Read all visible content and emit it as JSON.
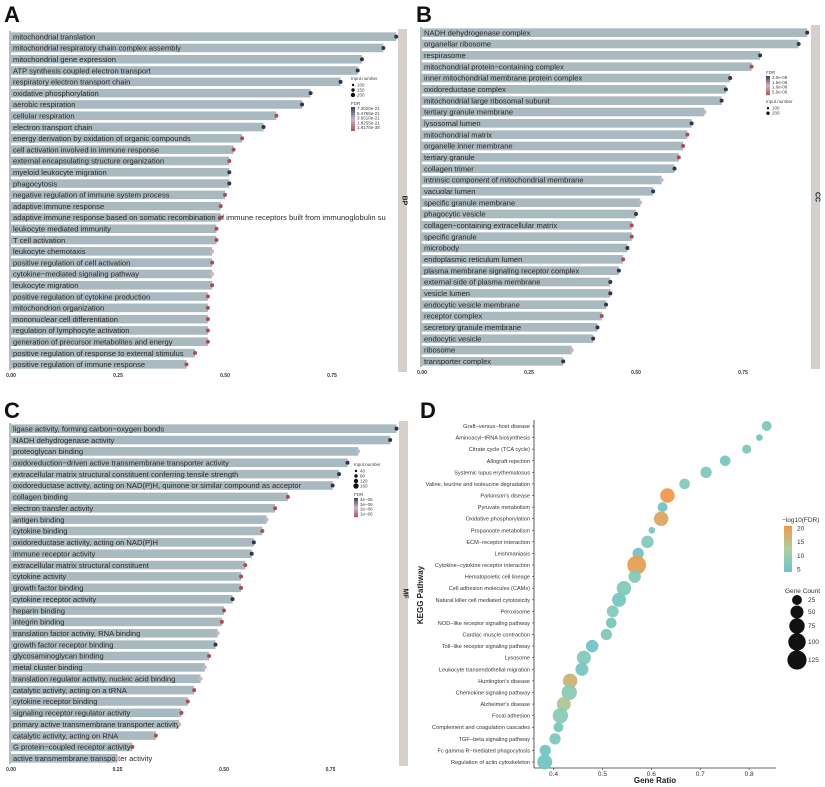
{
  "dot_palette": {
    "d": "#34344a",
    "r": "#b04a55",
    "l": "#cdb7be"
  },
  "bar_color": "#a9b9c0",
  "panels": [
    {
      "letter": "A",
      "strip": "BP",
      "xlim": [
        0,
        0.92
      ],
      "ticks": [
        "0.00",
        "0.25",
        "0.50",
        "0.75"
      ],
      "legend": {
        "size_title": "Input.number",
        "size_labels": [
          "100",
          "150",
          "200"
        ],
        "fdr_title": "FDR",
        "fdr_labels": [
          "7.3020e-21",
          "5.4765e-21",
          "3.6510e-21",
          "1.8255e-21",
          "1.9170e-38"
        ]
      },
      "terms": [
        {
          "label": "mitochondrial translation",
          "value": 0.9,
          "dot": "d"
        },
        {
          "label": "mitochondrial respiratory chain complex assembly",
          "value": 0.87,
          "dot": "d"
        },
        {
          "label": "mitochondrial gene expression",
          "value": 0.82,
          "dot": "d"
        },
        {
          "label": "ATP synthesis coupled electron transport",
          "value": 0.81,
          "dot": "d"
        },
        {
          "label": "respiratory electron transport chain",
          "value": 0.77,
          "dot": "d"
        },
        {
          "label": "oxidative phosphorylation",
          "value": 0.7,
          "dot": "d"
        },
        {
          "label": "aerobic respiration",
          "value": 0.68,
          "dot": "d"
        },
        {
          "label": "cellular respiration",
          "value": 0.62,
          "dot": "r"
        },
        {
          "label": "electron transport chain",
          "value": 0.59,
          "dot": "d"
        },
        {
          "label": "energy derivation by oxidation of organic compounds",
          "value": 0.54,
          "dot": "r"
        },
        {
          "label": "cell activation involved in immune response",
          "value": 0.52,
          "dot": "r"
        },
        {
          "label": "external encapsulating structure organization",
          "value": 0.51,
          "dot": "r"
        },
        {
          "label": "myeloid leukocyte migration",
          "value": 0.51,
          "dot": "d"
        },
        {
          "label": "phagocytosis",
          "value": 0.51,
          "dot": "d"
        },
        {
          "label": "negative regulation of immune system process",
          "value": 0.5,
          "dot": "r"
        },
        {
          "label": "adaptive immune response",
          "value": 0.49,
          "dot": "r"
        },
        {
          "label": "adaptive immune response based on somatic recombination of immune receptors built from immunoglobulin su",
          "value": 0.49,
          "dot": "r"
        },
        {
          "label": "leukocyte mediated immunity",
          "value": 0.48,
          "dot": "r"
        },
        {
          "label": "T cell activation",
          "value": 0.48,
          "dot": "r"
        },
        {
          "label": "leukocyte chemotaxis",
          "value": 0.47,
          "dot": "l"
        },
        {
          "label": "positive regulation of cell activation",
          "value": 0.47,
          "dot": "r"
        },
        {
          "label": "cytokine−mediated signaling pathway",
          "value": 0.47,
          "dot": "l"
        },
        {
          "label": "leukocyte migration",
          "value": 0.47,
          "dot": "r"
        },
        {
          "label": "positive regulation of cytokine production",
          "value": 0.46,
          "dot": "r"
        },
        {
          "label": "mitochondrion organization",
          "value": 0.46,
          "dot": "r"
        },
        {
          "label": "mononuclear cell differentiation",
          "value": 0.46,
          "dot": "r"
        },
        {
          "label": "regulation of lymphocyte activation",
          "value": 0.46,
          "dot": "r"
        },
        {
          "label": "generation of precursor metabolites and energy",
          "value": 0.46,
          "dot": "r"
        },
        {
          "label": "positive regulation of response to external stimulus",
          "value": 0.43,
          "dot": "r"
        },
        {
          "label": "positive regulation of immune response",
          "value": 0.41,
          "dot": "r"
        }
      ]
    },
    {
      "letter": "B",
      "strip": "CC",
      "xlim": [
        0,
        0.91
      ],
      "ticks": [
        "0.00",
        "0.25",
        "0.50",
        "0.75"
      ],
      "legend": {
        "fdr_title": "FDR",
        "fdr_labels": [
          "2.0e-08",
          "1.5e-08",
          "1.0e-08",
          "5.0e-09"
        ],
        "size_title": "Input.number",
        "size_labels": [
          "100",
          "200"
        ]
      },
      "terms": [
        {
          "label": "NADH dehydrogenase complex",
          "value": 0.9,
          "dot": "d"
        },
        {
          "label": "organellar ribosome",
          "value": 0.88,
          "dot": "d"
        },
        {
          "label": "respirasome",
          "value": 0.79,
          "dot": "d"
        },
        {
          "label": "mitochondrial protein−containing complex",
          "value": 0.77,
          "dot": "r"
        },
        {
          "label": "inner mitochondrial membrane protein complex",
          "value": 0.72,
          "dot": "d"
        },
        {
          "label": "oxidoreductase complex",
          "value": 0.71,
          "dot": "d"
        },
        {
          "label": "mitochondrial large ribosomal subunit",
          "value": 0.7,
          "dot": "d"
        },
        {
          "label": "tertiary granule membrane",
          "value": 0.66,
          "dot": "l"
        },
        {
          "label": "lysosomal lumen",
          "value": 0.63,
          "dot": "d"
        },
        {
          "label": "mitochondrial matrix",
          "value": 0.62,
          "dot": "r"
        },
        {
          "label": "organelle inner membrane",
          "value": 0.61,
          "dot": "r"
        },
        {
          "label": "tertiary granule",
          "value": 0.6,
          "dot": "r"
        },
        {
          "label": "collagen trimer",
          "value": 0.59,
          "dot": "d"
        },
        {
          "label": "intrinsic component of mitochondrial membrane",
          "value": 0.56,
          "dot": "l"
        },
        {
          "label": "vacuolar lumen",
          "value": 0.54,
          "dot": "d"
        },
        {
          "label": "specific granule membrane",
          "value": 0.51,
          "dot": "l"
        },
        {
          "label": "phagocytic vesicle",
          "value": 0.5,
          "dot": "d"
        },
        {
          "label": "collagen−containing extracellular matrix",
          "value": 0.49,
          "dot": "r"
        },
        {
          "label": "specific granule",
          "value": 0.49,
          "dot": "r"
        },
        {
          "label": "microbody",
          "value": 0.48,
          "dot": "d"
        },
        {
          "label": "endoplasmic reticulum lumen",
          "value": 0.47,
          "dot": "r"
        },
        {
          "label": "plasma membrane signaling receptor complex",
          "value": 0.46,
          "dot": "d"
        },
        {
          "label": "external side of plasma membrane",
          "value": 0.44,
          "dot": "d"
        },
        {
          "label": "vesicle lumen",
          "value": 0.44,
          "dot": "d"
        },
        {
          "label": "endocytic vesicle membrane",
          "value": 0.43,
          "dot": "d"
        },
        {
          "label": "receptor complex",
          "value": 0.42,
          "dot": "r"
        },
        {
          "label": "secretory granule membrane",
          "value": 0.41,
          "dot": "d"
        },
        {
          "label": "endocytic vesicle",
          "value": 0.4,
          "dot": "d"
        },
        {
          "label": "ribosome",
          "value": 0.35,
          "dot": "l"
        },
        {
          "label": "transporter complex",
          "value": 0.33,
          "dot": "d"
        }
      ]
    },
    {
      "letter": "C",
      "strip": "MF",
      "xlim": [
        0,
        0.915
      ],
      "ticks": [
        "0.00",
        "0.25",
        "0.50",
        "0.75"
      ],
      "legend": {
        "size_title": "Input.number",
        "size_labels": [
          "40",
          "80",
          "120",
          "160"
        ],
        "fdr_title": "FDR",
        "fdr_labels": [
          "4e−06",
          "3e−06",
          "2e−06",
          "1e−06"
        ]
      },
      "terms": [
        {
          "label": "ligase activity, forming carbon−oxygen bonds",
          "value": 0.905,
          "dot": "d"
        },
        {
          "label": "NADH dehydrogenase activity",
          "value": 0.89,
          "dot": "d"
        },
        {
          "label": "proteoglycan binding",
          "value": 0.815,
          "dot": "l"
        },
        {
          "label": "oxidoreduction−driven active transmembrane transporter activity",
          "value": 0.79,
          "dot": "d"
        },
        {
          "label": "extracellular matrix structural constituent conferring tensile strength",
          "value": 0.77,
          "dot": "d"
        },
        {
          "label": "oxidoreductase activity, acting on NAD(P)H, quinone or similar compound as acceptor",
          "value": 0.755,
          "dot": "d"
        },
        {
          "label": "collagen binding",
          "value": 0.65,
          "dot": "r"
        },
        {
          "label": "electron transfer activity",
          "value": 0.62,
          "dot": "r"
        },
        {
          "label": "antigen binding",
          "value": 0.6,
          "dot": "l"
        },
        {
          "label": "cytokine binding",
          "value": 0.59,
          "dot": "r"
        },
        {
          "label": "oxidoreductase activity, acting on NAD(P)H",
          "value": 0.57,
          "dot": "d"
        },
        {
          "label": "immune receptor activity",
          "value": 0.565,
          "dot": "d"
        },
        {
          "label": "extracellular matrix structural constituent",
          "value": 0.55,
          "dot": "r"
        },
        {
          "label": "cytokine activity",
          "value": 0.54,
          "dot": "r"
        },
        {
          "label": "growth factor binding",
          "value": 0.54,
          "dot": "r"
        },
        {
          "label": "cytokine receptor activity",
          "value": 0.52,
          "dot": "d"
        },
        {
          "label": "heparin binding",
          "value": 0.5,
          "dot": "r"
        },
        {
          "label": "integrin binding",
          "value": 0.495,
          "dot": "r"
        },
        {
          "label": "translation factor activity, RNA binding",
          "value": 0.485,
          "dot": "l"
        },
        {
          "label": "growth factor receptor binding",
          "value": 0.48,
          "dot": "d"
        },
        {
          "label": "glycosaminoglycan binding",
          "value": 0.465,
          "dot": "r"
        },
        {
          "label": "metal cluster binding",
          "value": 0.455,
          "dot": "l"
        },
        {
          "label": "translation regulator activity, nucleic acid binding",
          "value": 0.445,
          "dot": "l"
        },
        {
          "label": "catalytic activity, acting on a tRNA",
          "value": 0.43,
          "dot": "r"
        },
        {
          "label": "cytokine receptor binding",
          "value": 0.415,
          "dot": "r"
        },
        {
          "label": "signaling receptor regulator activity",
          "value": 0.4,
          "dot": "r"
        },
        {
          "label": "primary active transmembrane transporter activity",
          "value": 0.395,
          "dot": "l"
        },
        {
          "label": "catalytic activity, acting on RNA",
          "value": 0.34,
          "dot": "r"
        },
        {
          "label": "G protein−coupled receptor activity",
          "value": 0.285,
          "dot": "r"
        },
        {
          "label": "active transmembrane transporter activity",
          "value": 0.25,
          "dot": "l"
        }
      ]
    }
  ],
  "chart_data": [
    {
      "type": "bar",
      "panel": "A",
      "orientation": "horizontal",
      "facet": "BP",
      "xlim": [
        0,
        0.92
      ],
      "note_ref": "panels.0.terms"
    },
    {
      "type": "bar",
      "panel": "B",
      "orientation": "horizontal",
      "facet": "CC",
      "xlim": [
        0,
        0.91
      ],
      "note_ref": "panels.1.terms"
    },
    {
      "type": "bar",
      "panel": "C",
      "orientation": "horizontal",
      "facet": "MF",
      "xlim": [
        0,
        0.915
      ],
      "note_ref": "panels.2.terms"
    },
    {
      "type": "scatter",
      "panel": "D",
      "xlabel": "Gene Ratio",
      "ylabel": "KEGG Pathway",
      "xlim": [
        0.36,
        0.855
      ],
      "xticks": [
        "0.4",
        "0.5",
        "0.6",
        "0.7",
        "0.8"
      ],
      "color_legend": {
        "title": "−log10(FDR)",
        "ticks": [
          "20",
          "15",
          "10",
          "5"
        ],
        "range": [
          4,
          21
        ],
        "low": "#6cc3c8",
        "mid": "#9fd0a8",
        "high": "#f0994a"
      },
      "size_legend": {
        "title": "Gene Count",
        "ticks": [
          "25",
          "50",
          "75",
          "100",
          "125"
        ]
      },
      "legend_position": "right",
      "points": [
        {
          "pathway": "Graft−versus−host disease",
          "ratio": 0.836,
          "count": 25,
          "neglog10fdr": 7
        },
        {
          "pathway": "Aminoacyl−tRNA biosynthesis",
          "ratio": 0.821,
          "count": 8,
          "neglog10fdr": 6
        },
        {
          "pathway": "Citrate cycle (TCA cycle)",
          "ratio": 0.795,
          "count": 20,
          "neglog10fdr": 7
        },
        {
          "pathway": "Allograft rejection",
          "ratio": 0.751,
          "count": 30,
          "neglog10fdr": 6
        },
        {
          "pathway": "Systemic lupus erythematosus",
          "ratio": 0.712,
          "count": 35,
          "neglog10fdr": 7
        },
        {
          "pathway": "Valine, leucine and isoleucine degradation",
          "ratio": 0.668,
          "count": 30,
          "neglog10fdr": 8
        },
        {
          "pathway": "Parkinson's disease",
          "ratio": 0.633,
          "count": 65,
          "neglog10fdr": 21
        },
        {
          "pathway": "Pyruvate metabolism",
          "ratio": 0.623,
          "count": 25,
          "neglog10fdr": 5
        },
        {
          "pathway": "Oxidative phosphorylation",
          "ratio": 0.62,
          "count": 65,
          "neglog10fdr": 19
        },
        {
          "pathway": "Propanoate metabolism",
          "ratio": 0.601,
          "count": 8,
          "neglog10fdr": 6
        },
        {
          "pathway": "ECM−receptor interaction",
          "ratio": 0.592,
          "count": 45,
          "neglog10fdr": 8
        },
        {
          "pathway": "Leishmaniasis",
          "ratio": 0.573,
          "count": 35,
          "neglog10fdr": 5
        },
        {
          "pathway": "Cytokine−cytokine receptor interaction",
          "ratio": 0.57,
          "count": 120,
          "neglog10fdr": 20
        },
        {
          "pathway": "Hematopoietic cell lineage",
          "ratio": 0.566,
          "count": 45,
          "neglog10fdr": 8
        },
        {
          "pathway": "Cell adhesion molecules (CAMs)",
          "ratio": 0.544,
          "count": 65,
          "neglog10fdr": 8
        },
        {
          "pathway": "Natural killer cell mediated cytotoxicity",
          "ratio": 0.534,
          "count": 60,
          "neglog10fdr": 6
        },
        {
          "pathway": "Peroxisome",
          "ratio": 0.521,
          "count": 40,
          "neglog10fdr": 8
        },
        {
          "pathway": "NOD−like receptor signaling pathway",
          "ratio": 0.518,
          "count": 30,
          "neglog10fdr": 6
        },
        {
          "pathway": "Cardiac muscle contraction",
          "ratio": 0.508,
          "count": 35,
          "neglog10fdr": 7
        },
        {
          "pathway": "Toll−like receptor signaling pathway",
          "ratio": 0.479,
          "count": 45,
          "neglog10fdr": 5
        },
        {
          "pathway": "Lysosome",
          "ratio": 0.462,
          "count": 60,
          "neglog10fdr": 8
        },
        {
          "pathway": "Leukocyte transendothelial migration",
          "ratio": 0.458,
          "count": 50,
          "neglog10fdr": 6
        },
        {
          "pathway": "Huntington's disease",
          "ratio": 0.434,
          "count": 65,
          "neglog10fdr": 17
        },
        {
          "pathway": "Chemokine signaling pathway",
          "ratio": 0.432,
          "count": 75,
          "neglog10fdr": 9
        },
        {
          "pathway": "Alzheimer's disease",
          "ratio": 0.421,
          "count": 60,
          "neglog10fdr": 14
        },
        {
          "pathway": "Focal adhesion",
          "ratio": 0.414,
          "count": 75,
          "neglog10fdr": 9
        },
        {
          "pathway": "Complement and coagulation cascades",
          "ratio": 0.41,
          "count": 25,
          "neglog10fdr": 6
        },
        {
          "pathway": "TGF−beta signaling pathway",
          "ratio": 0.403,
          "count": 35,
          "neglog10fdr": 7
        },
        {
          "pathway": "Fc gamma R−mediated phagocytosis",
          "ratio": 0.383,
          "count": 35,
          "neglog10fdr": 5
        },
        {
          "pathway": "Regulation of actin cytoskeleton",
          "ratio": 0.382,
          "count": 70,
          "neglog10fdr": 5
        }
      ]
    }
  ],
  "panel_d_letter": "D"
}
